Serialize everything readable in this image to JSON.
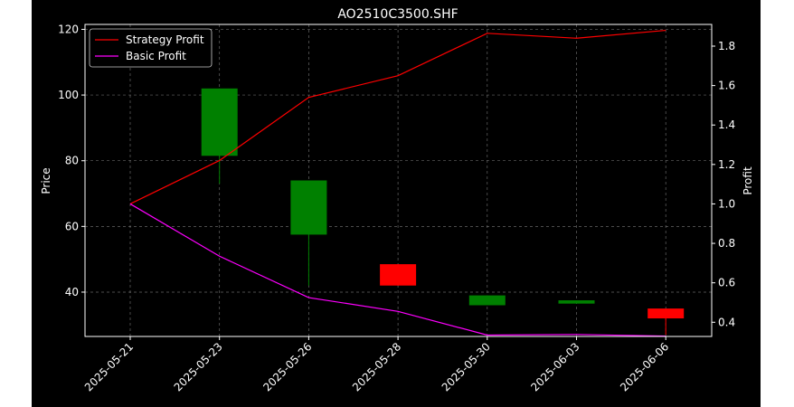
{
  "chart_data": {
    "type": "candlestick+line",
    "title": "AO2510C3500.SHF",
    "ylabel_left": "Price",
    "ylabel_right": "Profit",
    "xlabel": "",
    "categories": [
      "2025-05-21",
      "2025-05-23",
      "2025-05-26",
      "2025-05-28",
      "2025-05-30",
      "2025-06-03",
      "2025-06-06"
    ],
    "ylim_left": [
      26.5,
      121.5
    ],
    "yticks_left": [
      40,
      60,
      80,
      100,
      120
    ],
    "ylim_right": [
      0.328,
      1.91
    ],
    "yticks_right": [
      0.4,
      0.6,
      0.8,
      1.0,
      1.2,
      1.4,
      1.6,
      1.8
    ],
    "grid": true,
    "legend_position": "top-left",
    "candles": [
      {
        "date": "2025-05-23",
        "open": 81.5,
        "close": 102.0,
        "high": 102.0,
        "low": 73.0
      },
      {
        "date": "2025-05-26",
        "open": 57.5,
        "close": 74.0,
        "high": 74.0,
        "low": 42.0
      },
      {
        "date": "2025-05-28",
        "open": 48.5,
        "close": 42.0,
        "high": 48.5,
        "low": 42.0
      },
      {
        "date": "2025-05-30",
        "open": 36.0,
        "close": 39.0,
        "high": 39.0,
        "low": 36.0
      },
      {
        "date": "2025-06-03",
        "open": 36.5,
        "close": 37.5,
        "high": 37.5,
        "low": 36.5
      },
      {
        "date": "2025-06-06",
        "open": 35.0,
        "close": 32.0,
        "high": 35.0,
        "low": 27.0
      }
    ],
    "series": [
      {
        "name": "Strategy Profit",
        "axis": "right",
        "color": "#ff0000",
        "values": [
          1.0,
          1.22,
          1.54,
          1.65,
          1.865,
          1.84,
          1.88
        ]
      },
      {
        "name": "Basic Profit",
        "axis": "right",
        "color": "#ff00ff",
        "values": [
          1.0,
          0.735,
          0.525,
          0.455,
          0.335,
          0.338,
          0.33
        ]
      }
    ],
    "colors": {
      "up": "#008000",
      "down": "#ff0000",
      "grid": "#808080",
      "axis": "#ffffff",
      "background": "#000000"
    }
  }
}
